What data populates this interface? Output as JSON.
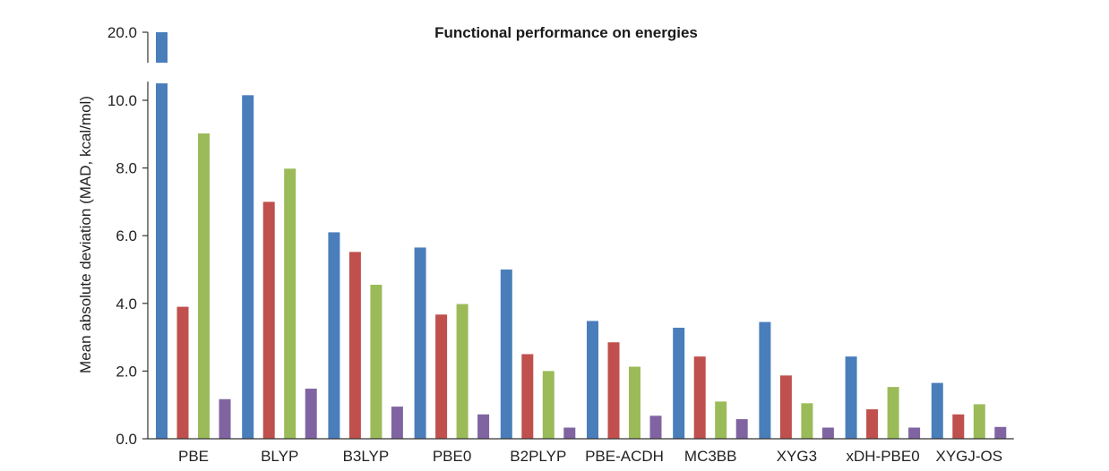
{
  "chart_data": {
    "type": "bar",
    "title": "Functional performance on energies",
    "xlabel": "",
    "ylabel": "Mean absolute deviation (MAD, kcal/mol)",
    "categories": [
      "PBE",
      "BLYP",
      "B3LYP",
      "PBE0",
      "B2PLYP",
      "PBE-ACDH",
      "MC3BB",
      "XYG3",
      "xDH-PBE0",
      "XYGJ-OS"
    ],
    "ylim": [
      0,
      20
    ],
    "axis_break": [
      10.5,
      20.0
    ],
    "yticks": [
      0,
      2,
      4,
      6,
      8,
      10,
      20
    ],
    "ytick_labels": [
      "0.0",
      "2.0",
      "4.0",
      "6.0",
      "8.0",
      "10.0",
      "20.0"
    ],
    "grid": false,
    "legend": "none",
    "series": [
      {
        "name": "series 1",
        "color": "#4a7ebb",
        "values": [
          20.0,
          10.15,
          6.1,
          5.65,
          5.0,
          3.48,
          3.28,
          3.45,
          2.43,
          1.65
        ]
      },
      {
        "name": "series 2",
        "color": "#c0504d",
        "values": [
          3.9,
          7.0,
          5.52,
          3.67,
          2.5,
          2.85,
          2.43,
          1.87,
          0.87,
          0.72
        ]
      },
      {
        "name": "series 3",
        "color": "#9bbb59",
        "values": [
          9.02,
          7.98,
          4.55,
          3.98,
          2.0,
          2.13,
          1.1,
          1.05,
          1.53,
          1.02
        ]
      },
      {
        "name": "series 4",
        "color": "#8064a2",
        "values": [
          1.17,
          1.48,
          0.95,
          0.72,
          0.33,
          0.68,
          0.58,
          0.33,
          0.33,
          0.35
        ]
      }
    ]
  }
}
